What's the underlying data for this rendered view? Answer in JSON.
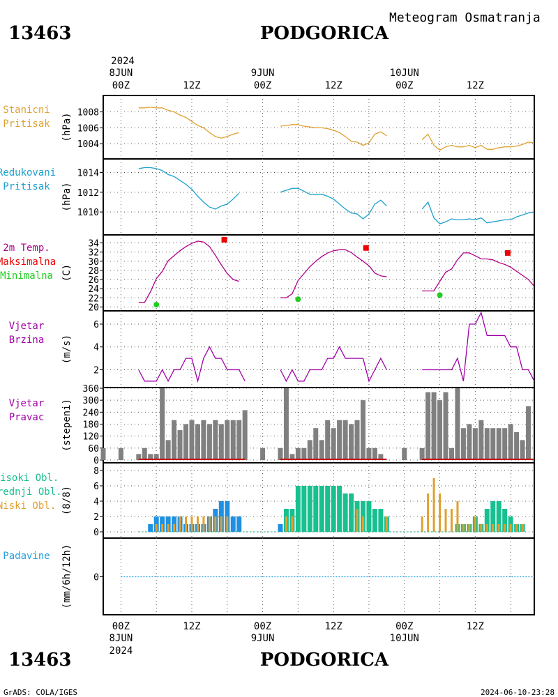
{
  "header": {
    "station_id": "13463",
    "station_name": "PODGORICA",
    "subtitle": "Meteogram Osmatranja"
  },
  "footer": {
    "credit": "GrADS: COLA/IGES",
    "timestamp": "2024-06-10-23:28"
  },
  "time_axis": {
    "top_year": "2024",
    "labels": [
      {
        "hour": 0,
        "time": "00Z",
        "date": "8JUN",
        "year": "2024"
      },
      {
        "hour": 12,
        "time": "12Z",
        "date": "",
        "year": ""
      },
      {
        "hour": 24,
        "time": "00Z",
        "date": "9JUN",
        "year": ""
      },
      {
        "hour": 36,
        "time": "12Z",
        "date": "",
        "year": ""
      },
      {
        "hour": 48,
        "time": "00Z",
        "date": "10JUN",
        "year": ""
      },
      {
        "hour": 60,
        "time": "12Z",
        "date": "",
        "year": ""
      }
    ],
    "range": [
      -3,
      70
    ]
  },
  "colors": {
    "pressure": "#e0a030",
    "reduced_pressure": "#1aa0cc",
    "temperature": "#b0008a",
    "tmax": "#ee0000",
    "tmin": "#22cc22",
    "wind": "#a000a8",
    "direction_bar": "#808080",
    "direction_base": "#cc0000",
    "cloud_high": "#18c090",
    "cloud_mid": "#2090e0",
    "cloud_low": "#e0a030",
    "precip": "#20a0e0",
    "grid": "#555555"
  },
  "chart_data": [
    {
      "type": "line",
      "panel": "station_pressure",
      "labels": [
        "Stanicni",
        "Pritisak"
      ],
      "ylabel": "(hPa)",
      "ylim": [
        1002.7,
        1009.8
      ],
      "yticks": [
        1004,
        1006,
        1008
      ],
      "series": [
        {
          "x": [
            3,
            4,
            5,
            6,
            7,
            8,
            9,
            10,
            11,
            12,
            13,
            14,
            15,
            16,
            17,
            18,
            19,
            20,
            null,
            27,
            28,
            29,
            30,
            31,
            32,
            33,
            34,
            35,
            36,
            37,
            38,
            39,
            40,
            41,
            42,
            43,
            44,
            45,
            null,
            51,
            52,
            53,
            54,
            55,
            56,
            57,
            58,
            59,
            60,
            61,
            62,
            63,
            64,
            65,
            66,
            67,
            68,
            69,
            70
          ],
          "y": [
            1008.5,
            1008.5,
            1008.6,
            1008.5,
            1008.5,
            1008.2,
            1008.0,
            1007.6,
            1007.3,
            1006.8,
            1006.3,
            1006.0,
            1005.4,
            1004.9,
            1004.7,
            1004.9,
            1005.2,
            1005.4,
            null,
            1006.2,
            1006.3,
            1006.4,
            1006.4,
            1006.2,
            1006.1,
            1006.0,
            1006.0,
            1005.9,
            1005.7,
            1005.4,
            1004.9,
            1004.3,
            1004.2,
            1003.8,
            1004.1,
            1005.2,
            1005.5,
            1005.0,
            null,
            1004.5,
            1005.2,
            1003.8,
            1003.2,
            1003.6,
            1003.8,
            1003.6,
            1003.6,
            1003.8,
            1003.5,
            1003.8,
            1003.3,
            1003.3,
            1003.5,
            1003.6,
            1003.6,
            1003.7,
            1003.9,
            1004.2,
            1004.1
          ]
        }
      ]
    },
    {
      "type": "line",
      "panel": "reduced_pressure",
      "labels": [
        "Redukovani",
        "Pritisak"
      ],
      "ylabel": "(hPa)",
      "ylim": [
        1008.1,
        1015.1
      ],
      "yticks": [
        1010,
        1012,
        1014
      ],
      "series": [
        {
          "x": [
            3,
            4,
            5,
            6,
            7,
            8,
            9,
            10,
            11,
            12,
            13,
            14,
            15,
            16,
            17,
            18,
            19,
            20,
            null,
            27,
            28,
            29,
            30,
            31,
            32,
            33,
            34,
            35,
            36,
            37,
            38,
            39,
            40,
            41,
            42,
            43,
            44,
            45,
            null,
            51,
            52,
            53,
            54,
            55,
            56,
            57,
            58,
            59,
            60,
            61,
            62,
            63,
            64,
            65,
            66,
            67,
            68,
            69,
            70
          ],
          "y": [
            1014.4,
            1014.5,
            1014.5,
            1014.4,
            1014.2,
            1013.8,
            1013.6,
            1013.2,
            1012.8,
            1012.3,
            1011.6,
            1011.0,
            1010.5,
            1010.3,
            1010.6,
            1010.8,
            1011.3,
            1011.9,
            null,
            1012.0,
            1012.2,
            1012.4,
            1012.4,
            1012.1,
            1011.8,
            1011.8,
            1011.8,
            1011.6,
            1011.3,
            1010.8,
            1010.3,
            1009.9,
            1009.8,
            1009.3,
            1009.8,
            1010.8,
            1011.2,
            1010.6,
            null,
            1010.3,
            1011.0,
            1009.4,
            1008.8,
            1009.0,
            1009.3,
            1009.2,
            1009.2,
            1009.3,
            1009.2,
            1009.4,
            1008.9,
            1009.0,
            1009.1,
            1009.2,
            1009.2,
            1009.5,
            1009.7,
            1009.9,
            1010.0
          ]
        }
      ]
    },
    {
      "type": "line",
      "panel": "temperature",
      "labels": [
        "2m Temp.",
        "Maksimalna",
        "Minimalna"
      ],
      "ylabel": "(C)",
      "ylim": [
        19.3,
        35.6
      ],
      "yticks": [
        20,
        22,
        24,
        26,
        28,
        30,
        32,
        34
      ],
      "series": [
        {
          "name": "2m Temp.",
          "x": [
            3,
            4,
            5,
            6,
            7,
            8,
            9,
            10,
            11,
            12,
            13,
            14,
            15,
            16,
            17,
            18,
            19,
            20,
            null,
            27,
            28,
            29,
            30,
            31,
            32,
            33,
            34,
            35,
            36,
            37,
            38,
            39,
            40,
            41,
            42,
            43,
            44,
            45,
            null,
            51,
            52,
            53,
            54,
            55,
            56,
            57,
            58,
            59,
            60,
            61,
            62,
            63,
            64,
            65,
            66,
            67,
            68,
            69,
            70
          ],
          "y": [
            21.0,
            21.0,
            23.3,
            26.2,
            27.8,
            30.1,
            31.2,
            32.3,
            33.2,
            33.9,
            34.4,
            34.2,
            33.2,
            31.3,
            29.2,
            27.3,
            26.0,
            25.6,
            null,
            22.0,
            22.0,
            22.9,
            25.8,
            27.3,
            28.8,
            30.0,
            31.0,
            31.8,
            32.3,
            32.5,
            32.5,
            31.9,
            30.9,
            30.0,
            29.0,
            27.4,
            26.8,
            26.6,
            null,
            23.5,
            23.5,
            23.5,
            25.6,
            27.6,
            28.3,
            30.3,
            31.8,
            31.8,
            31.2,
            30.5,
            30.5,
            30.3,
            29.7,
            29.3,
            28.7,
            27.8,
            26.9,
            26.0,
            24.5
          ]
        }
      ],
      "tmax": [
        {
          "x": 17.5,
          "y": 34.7
        },
        {
          "x": 41.5,
          "y": 32.9
        },
        {
          "x": 65.5,
          "y": 31.8
        }
      ],
      "tmin": [
        {
          "x": 6,
          "y": 20.5
        },
        {
          "x": 30,
          "y": 21.7
        },
        {
          "x": 54,
          "y": 22.6
        }
      ]
    },
    {
      "type": "line",
      "panel": "wind_speed",
      "labels": [
        "Vjetar",
        "Brzina"
      ],
      "ylabel": "(m/s)",
      "ylim": [
        0.5,
        7.1
      ],
      "yticks": [
        2,
        4,
        6
      ],
      "series": [
        {
          "x": [
            3,
            4,
            5,
            6,
            7,
            8,
            9,
            10,
            11,
            12,
            13,
            14,
            15,
            16,
            17,
            18,
            19,
            20,
            21,
            null,
            27,
            28,
            29,
            30,
            31,
            32,
            33,
            34,
            35,
            36,
            37,
            38,
            39,
            40,
            41,
            42,
            43,
            44,
            45,
            null,
            51,
            52,
            53,
            54,
            55,
            56,
            57,
            58,
            59,
            60,
            61,
            62,
            63,
            64,
            65,
            66,
            67,
            68,
            69,
            70
          ],
          "y": [
            2,
            1,
            1,
            1,
            2,
            1,
            2,
            2,
            3,
            3,
            1,
            3,
            4,
            3,
            3,
            2,
            2,
            2,
            1,
            null,
            2,
            1,
            2,
            1,
            1,
            2,
            2,
            2,
            3,
            3,
            4,
            3,
            3,
            3,
            3,
            1,
            2,
            3,
            2,
            null,
            2,
            2,
            2,
            2,
            2,
            2,
            3,
            1,
            6,
            6,
            7,
            5,
            5,
            5,
            5,
            4,
            4,
            2,
            2,
            1
          ]
        }
      ]
    },
    {
      "type": "bar",
      "panel": "wind_direction",
      "labels": [
        "Vjetar",
        "Pravac"
      ],
      "ylabel": "(stepeni)",
      "ylim": [
        0,
        360
      ],
      "yticks": [
        0,
        60,
        120,
        180,
        240,
        300,
        360
      ],
      "x": [
        -3,
        0,
        3,
        4,
        5,
        6,
        7,
        8,
        9,
        10,
        11,
        12,
        13,
        14,
        15,
        16,
        17,
        18,
        19,
        20,
        21,
        24,
        27,
        28,
        29,
        30,
        31,
        32,
        33,
        34,
        35,
        36,
        37,
        38,
        39,
        40,
        41,
        42,
        43,
        44,
        45,
        48,
        51,
        52,
        53,
        54,
        55,
        56,
        57,
        58,
        59,
        60,
        61,
        62,
        63,
        64,
        65,
        66,
        67,
        68,
        69,
        70
      ],
      "values": [
        60,
        60,
        30,
        60,
        30,
        30,
        360,
        100,
        200,
        150,
        180,
        200,
        180,
        200,
        180,
        200,
        180,
        200,
        200,
        200,
        250,
        60,
        60,
        360,
        30,
        60,
        60,
        100,
        160,
        100,
        200,
        160,
        200,
        200,
        180,
        200,
        300,
        60,
        60,
        30,
        0,
        60,
        60,
        340,
        340,
        300,
        340,
        60,
        360,
        160,
        180,
        160,
        200,
        160,
        160,
        160,
        160,
        180,
        140,
        100,
        270,
        0
      ]
    },
    {
      "type": "bar",
      "panel": "cloud_cover",
      "labels": [
        "Visoki Obl.",
        "Srednji Obl.",
        "Niski Obl."
      ],
      "ylabel": "(8/8)",
      "ylim": [
        0,
        8
      ],
      "yticks": [
        0,
        2,
        4,
        6,
        8
      ],
      "x": [
        3,
        4,
        5,
        6,
        7,
        8,
        9,
        10,
        11,
        12,
        13,
        14,
        15,
        16,
        17,
        18,
        19,
        20,
        null,
        27,
        28,
        29,
        30,
        31,
        32,
        33,
        34,
        35,
        36,
        37,
        38,
        39,
        40,
        41,
        42,
        43,
        44,
        45,
        null,
        51,
        52,
        53,
        54,
        55,
        56,
        57,
        58,
        59,
        60,
        61,
        62,
        63,
        64,
        65,
        66,
        67,
        68
      ],
      "series": [
        {
          "name": "Visoki Obl.",
          "values": [
            0,
            0,
            0,
            0,
            0,
            0,
            0,
            0,
            0,
            0,
            0,
            0,
            0,
            0,
            0,
            0,
            0,
            0,
            null,
            0,
            3,
            3,
            6,
            6,
            6,
            6,
            6,
            6,
            6,
            6,
            5,
            5,
            4,
            4,
            4,
            3,
            3,
            2,
            null,
            0,
            0,
            0,
            0,
            0,
            0,
            1,
            1,
            1,
            2,
            1,
            3,
            4,
            4,
            3,
            2,
            1,
            1
          ]
        },
        {
          "name": "Srednji Obl.",
          "values": [
            0,
            0,
            1,
            2,
            2,
            2,
            2,
            2,
            1,
            1,
            1,
            1,
            2,
            3,
            4,
            4,
            2,
            2,
            null,
            1,
            0,
            0,
            0,
            0,
            0,
            0,
            0,
            0,
            0,
            0,
            0,
            0,
            0,
            0,
            0,
            0,
            0,
            0,
            null,
            0,
            0,
            0,
            0,
            0,
            0,
            0,
            0,
            0,
            0,
            0,
            0,
            0,
            0,
            0,
            0,
            0,
            0
          ]
        },
        {
          "name": "Niski Obl.",
          "values": [
            0,
            0,
            0,
            1,
            1,
            1,
            1,
            2,
            2,
            2,
            2,
            2,
            2,
            2,
            2,
            2,
            0,
            0,
            null,
            0,
            2,
            2,
            0,
            0,
            0,
            0,
            0,
            0,
            0,
            0,
            0,
            0,
            3,
            2,
            0,
            0,
            0,
            2,
            null,
            2,
            5,
            7,
            5,
            3,
            3,
            4,
            1,
            1,
            2,
            1,
            1,
            1,
            1,
            1,
            1,
            1,
            1
          ]
        }
      ]
    },
    {
      "type": "line",
      "panel": "precipitation",
      "labels": [
        "Padavine"
      ],
      "ylabel": "(mm/6h/12h)",
      "ylim": [
        -4,
        4
      ],
      "yticks": [
        0
      ],
      "series": [
        {
          "x": [
            0,
            70
          ],
          "y": [
            0,
            0
          ]
        }
      ]
    }
  ]
}
